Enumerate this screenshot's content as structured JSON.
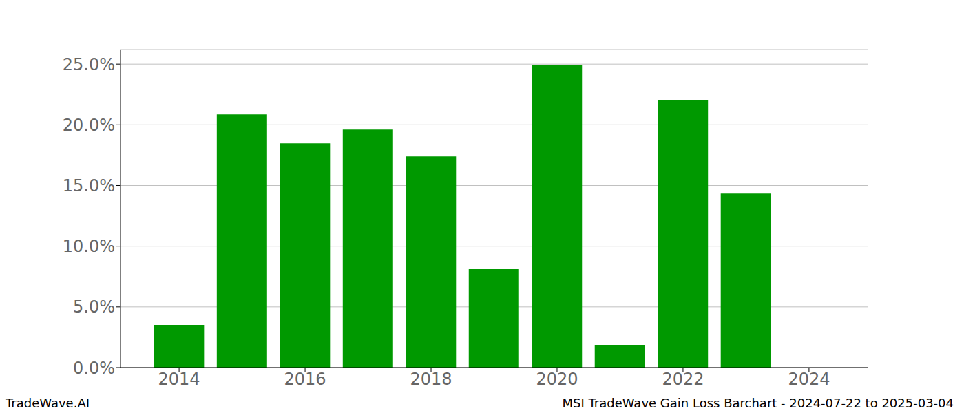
{
  "chart_data": {
    "type": "bar",
    "title": "MSI TradeWave Gain Loss Barchart - 2024-07-22 to 2025-03-04",
    "annotations": [
      "TradeWave.AI"
    ],
    "x": [
      2014,
      2015,
      2016,
      2017,
      2018,
      2019,
      2020,
      2021,
      2022,
      2023,
      2024
    ],
    "values": [
      3.51,
      20.86,
      18.48,
      19.61,
      17.4,
      8.11,
      24.94,
      1.87,
      22.0,
      14.34,
      0
    ],
    "color": "#009900",
    "xlim": [
      2013.07,
      2024.93
    ],
    "xticks": [
      2014,
      2016,
      2018,
      2020,
      2022,
      2024
    ],
    "ylim": [
      0,
      26.2
    ],
    "yticks": [
      {
        "value": 0,
        "label": "0.0%"
      },
      {
        "value": 5,
        "label": "5.0%"
      },
      {
        "value": 10,
        "label": "10.0%"
      },
      {
        "value": 15,
        "label": "15.0%"
      },
      {
        "value": 20,
        "label": "20.0%"
      },
      {
        "value": 25,
        "label": "25.0%"
      }
    ],
    "grid": true
  }
}
